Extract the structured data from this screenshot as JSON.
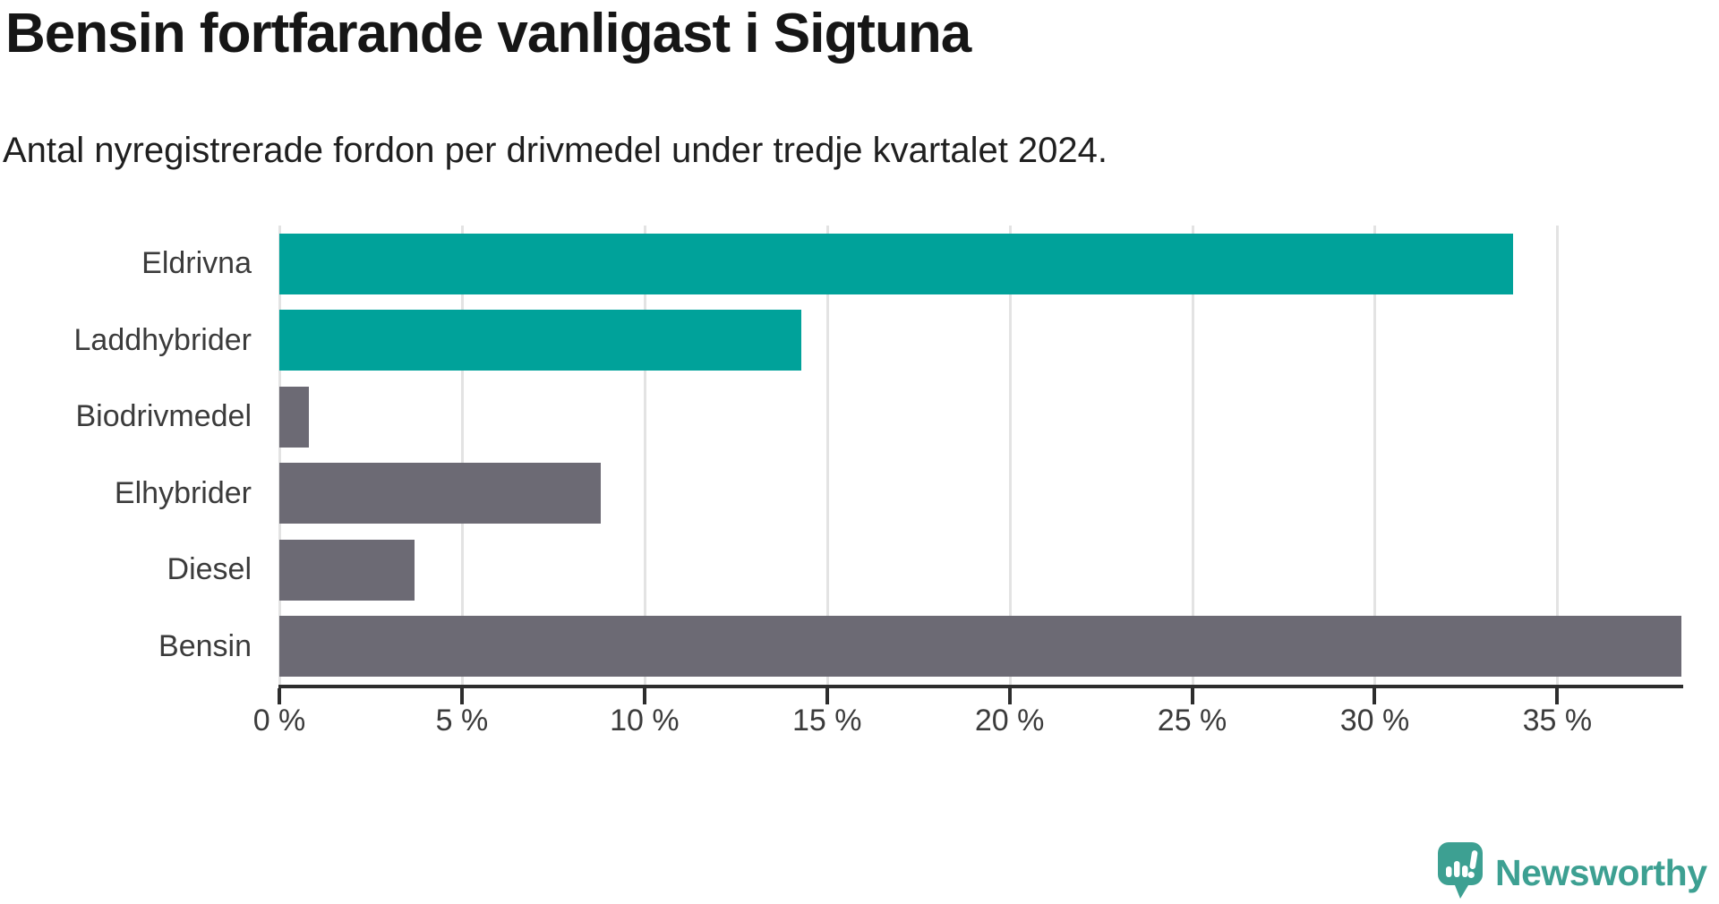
{
  "header": {
    "title": "Bensin fortfarande vanligast i Sigtuna",
    "subtitle": "Antal nyregistrerade fordon per drivmedel under tredje kvartalet 2024."
  },
  "chart_data": {
    "type": "bar",
    "orientation": "horizontal",
    "title": "Bensin fortfarande vanligast i Sigtuna",
    "subtitle": "Antal nyregistrerade fordon per drivmedel under tredje kvartalet 2024.",
    "categories": [
      "Eldrivna",
      "Laddhybrider",
      "Biodrivmedel",
      "Elhybrider",
      "Diesel",
      "Bensin"
    ],
    "values": [
      33.8,
      14.3,
      0.8,
      8.8,
      3.7,
      38.4
    ],
    "bar_colors": [
      "#00a29a",
      "#00a29a",
      "#6c6a74",
      "#6c6a74",
      "#6c6a74",
      "#6c6a74"
    ],
    "x_ticks": [
      0,
      5,
      10,
      15,
      20,
      25,
      30,
      35
    ],
    "x_tick_labels": [
      "0 %",
      "5 %",
      "10 %",
      "15 %",
      "20 %",
      "25 %",
      "30 %",
      "35 %"
    ],
    "xlim": [
      0,
      38.4
    ],
    "xlabel": "",
    "ylabel": "",
    "grid": "vertical-gridlines-on",
    "legend": "none"
  },
  "colors": {
    "teal": "#00a29a",
    "gray": "#6c6a74",
    "grid": "#e3e3e3",
    "axis": "#2d2d2d",
    "label_text": "#3b3b3b",
    "logo_teal": "#3da092"
  },
  "branding": {
    "logo_text": "Newsworthy"
  }
}
